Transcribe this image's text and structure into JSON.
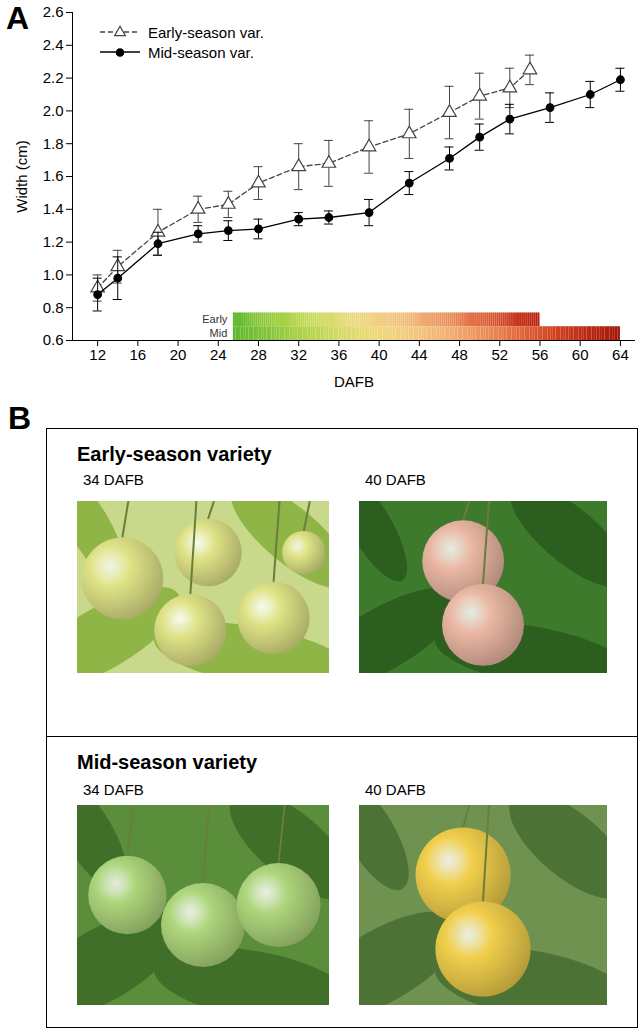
{
  "chart_data": {
    "type": "line",
    "panel_label": "A",
    "x_label": "DAFB",
    "y_label": "Width (cm)",
    "xlim": [
      9.5,
      65.5
    ],
    "xticks": [
      12,
      16,
      20,
      24,
      28,
      32,
      36,
      40,
      44,
      48,
      52,
      56,
      60,
      64
    ],
    "ylim": [
      0.6,
      2.6
    ],
    "yticks": [
      0.6,
      0.8,
      {
        "value": 1,
        "label": "1.0"
      },
      1.2,
      1.4,
      1.6,
      1.8,
      {
        "value": 2,
        "label": "2.0"
      },
      2.2,
      2.4,
      2.6
    ],
    "grid": false,
    "legend": "upper left",
    "series": [
      {
        "name": "Early-season var.",
        "color": "#444444",
        "marker": "triangle-open",
        "line_style": "dashed",
        "x": [
          12,
          14,
          18,
          22,
          25,
          28,
          32,
          35,
          39,
          43,
          47,
          50,
          53,
          55
        ],
        "values": [
          0.92,
          1.05,
          1.26,
          1.4,
          1.43,
          1.56,
          1.66,
          1.68,
          1.78,
          1.86,
          1.99,
          2.09,
          2.14,
          2.25
        ],
        "errors": [
          0.08,
          0.1,
          0.14,
          0.08,
          0.08,
          0.1,
          0.14,
          0.14,
          0.16,
          0.15,
          0.16,
          0.14,
          0.12,
          0.09
        ]
      },
      {
        "name": "Mid-season var.",
        "color": "#000000",
        "marker": "circle",
        "line_style": "solid",
        "x": [
          12,
          14,
          18,
          22,
          25,
          28,
          32,
          35,
          39,
          43,
          47,
          50,
          53,
          57,
          61,
          64
        ],
        "values": [
          0.88,
          0.98,
          1.19,
          1.25,
          1.27,
          1.28,
          1.34,
          1.35,
          1.38,
          1.56,
          1.71,
          1.84,
          1.95,
          2.02,
          2.1,
          2.19
        ],
        "errors": [
          0.1,
          0.13,
          0.07,
          0.05,
          0.06,
          0.06,
          0.04,
          0.04,
          0.08,
          0.07,
          0.07,
          0.08,
          0.09,
          0.09,
          0.08,
          0.07
        ]
      }
    ],
    "ripening": [
      {
        "name": "Early",
        "start": 25.5,
        "end": 56,
        "colors": [
          "#5fb92e",
          "#b9d840",
          "#f4e08c",
          "#f3b57c",
          "#e36a3c",
          "#b81d0c"
        ]
      },
      {
        "name": "Mid",
        "start": 25.5,
        "end": 64,
        "colors": [
          "#5cb82e",
          "#a9d042",
          "#f2e27c",
          "#f5c282",
          "#ee8a56",
          "#d23c1a",
          "#a31608"
        ]
      }
    ]
  },
  "photo_panel": {
    "panel_label": "B",
    "rows": [
      {
        "title": "Early-season variety",
        "photos": [
          {
            "label": "34 DAFB"
          },
          {
            "label": "40 DAFB"
          }
        ]
      },
      {
        "title": "Mid-season variety",
        "photos": [
          {
            "label": "34 DAFB"
          },
          {
            "label": "40 DAFB"
          }
        ]
      }
    ]
  }
}
